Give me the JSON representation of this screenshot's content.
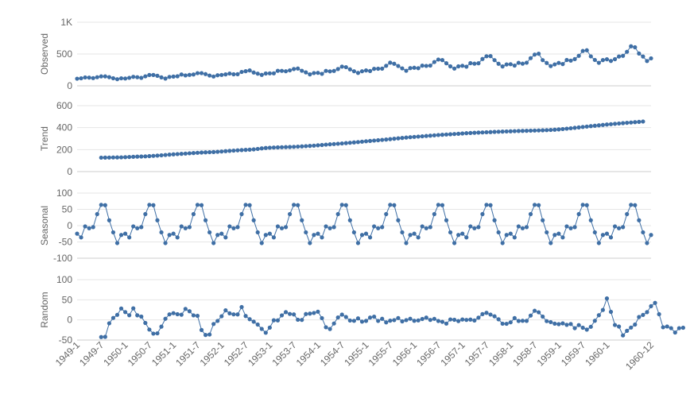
{
  "chart_data": {
    "type": "line",
    "title": "",
    "x_label": "",
    "x_ticks": [
      "1949-1",
      "1949-7",
      "1950-1",
      "1950-7",
      "1951-1",
      "1951-7",
      "1952-1",
      "1952-7",
      "1953-1",
      "1953-7",
      "1954-1",
      "1954-7",
      "1955-1",
      "1955-7",
      "1956-1",
      "1956-7",
      "1957-1",
      "1957-7",
      "1958-1",
      "1958-7",
      "1959-1",
      "1959-7",
      "1960-1",
      "1960-12"
    ],
    "x_range": [
      "1949-1",
      "1960-12"
    ],
    "color": "#3f6fa5",
    "panels": [
      {
        "name": "Observed",
        "y_ticks": [
          0,
          500,
          1000
        ],
        "y_tick_labels": [
          "0",
          "500",
          "1K"
        ],
        "ylim": [
          0,
          1000
        ],
        "values": [
          112,
          118,
          132,
          129,
          121,
          135,
          148,
          148,
          136,
          119,
          104,
          118,
          115,
          126,
          141,
          135,
          125,
          149,
          170,
          170,
          158,
          133,
          114,
          140,
          145,
          150,
          178,
          163,
          172,
          178,
          199,
          199,
          184,
          162,
          146,
          166,
          171,
          180,
          193,
          181,
          183,
          218,
          230,
          242,
          209,
          191,
          172,
          194,
          196,
          196,
          236,
          235,
          229,
          243,
          264,
          272,
          237,
          211,
          180,
          201,
          204,
          188,
          235,
          227,
          234,
          264,
          302,
          293,
          259,
          229,
          203,
          229,
          242,
          233,
          267,
          269,
          270,
          315,
          364,
          347,
          312,
          274,
          237,
          278,
          284,
          277,
          317,
          313,
          318,
          374,
          413,
          405,
          355,
          306,
          271,
          306,
          315,
          301,
          356,
          348,
          355,
          422,
          465,
          467,
          404,
          347,
          305,
          336,
          340,
          318,
          362,
          348,
          363,
          435,
          491,
          505,
          404,
          359,
          310,
          337,
          360,
          342,
          406,
          396,
          420,
          472,
          548,
          559,
          463,
          407,
          362,
          405,
          417,
          391,
          419,
          461,
          472,
          535,
          622,
          606,
          508,
          461,
          390,
          432
        ]
      },
      {
        "name": "Trend",
        "y_ticks": [
          0,
          200,
          400,
          600
        ],
        "y_tick_labels": [
          "0",
          "200",
          "400",
          "600"
        ],
        "ylim": [
          0,
          600
        ],
        "start_index": 6,
        "values": [
          126.79,
          127.25,
          127.96,
          128.58,
          129.0,
          129.75,
          131.25,
          133.08,
          134.92,
          136.42,
          137.42,
          138.75,
          140.92,
          143.17,
          145.71,
          148.42,
          151.54,
          154.71,
          157.12,
          159.54,
          161.83,
          164.12,
          166.67,
          169.08,
          171.25,
          173.58,
          175.46,
          176.83,
          178.04,
          180.17,
          183.12,
          186.21,
          189.04,
          191.29,
          193.58,
          195.83,
          198.04,
          199.75,
          202.21,
          206.42,
          211.29,
          215.21,
          217.42,
          219.04,
          220.58,
          222.0,
          222.92,
          224.0,
          225.5,
          227.42,
          229.5,
          231.62,
          233.92,
          236.38,
          239.25,
          242.25,
          245.21,
          248.21,
          250.79,
          253.38,
          256.17,
          259.25,
          262.33,
          265.5,
          268.96,
          272.62,
          276.17,
          279.38,
          282.29,
          285.38,
          288.62,
          291.88,
          295.62,
          299.29,
          302.88,
          306.42,
          309.71,
          312.92,
          315.83,
          318.62,
          321.33,
          324.12,
          327.12,
          330.04,
          332.79,
          335.29,
          337.58,
          339.79,
          342.04,
          344.42,
          347.0,
          349.42,
          351.46,
          353.21,
          354.92,
          356.54,
          358.12,
          359.75,
          361.33,
          362.83,
          364.25,
          365.58,
          366.88,
          368.17,
          369.38,
          370.5,
          371.54,
          372.5,
          373.5,
          374.58,
          375.79,
          377.21,
          379.04,
          381.38,
          384.17,
          387.29,
          390.71,
          394.38,
          398.21,
          402.12,
          406.04,
          409.92,
          413.75,
          417.5,
          421.17,
          424.79,
          428.29,
          431.67,
          434.88,
          437.96,
          440.96,
          443.92,
          446.88,
          449.83,
          452.75,
          455.67
        ]
      },
      {
        "name": "Seasonal",
        "y_ticks": [
          -100,
          -50,
          0,
          50,
          100
        ],
        "y_tick_labels": [
          "-100",
          "-50",
          "0",
          "50",
          "100"
        ],
        "ylim": [
          -100,
          100
        ],
        "pattern": [
          -24.75,
          -36.19,
          -2.24,
          -8.04,
          -4.51,
          35.4,
          63.83,
          62.82,
          16.52,
          -20.64,
          -53.59,
          -28.62
        ]
      },
      {
        "name": "Random",
        "y_ticks": [
          -50,
          0,
          50,
          100
        ],
        "y_tick_labels": [
          "-50",
          "0",
          "50",
          "100"
        ],
        "ylim": [
          -50,
          100
        ],
        "start_index": 6,
        "values": [
          -42.62,
          -42.07,
          -8.49,
          4.85,
          12.57,
          28.3,
          19.41,
          11.6,
          28.66,
          11.45,
          8.18,
          -7.6,
          -23.99,
          -34.06,
          -33.33,
          -16.71,
          2.85,
          13.79,
          16.75,
          14.15,
          12.91,
          27.35,
          21.5,
          11.27,
          10.14,
          -25.07,
          -37.37,
          -36.33,
          -10.15,
          -2.5,
          9.09,
          23.8,
          16.38,
          13.77,
          13.66,
          31.94,
          9.75,
          1.8,
          -4.37,
          -11.49,
          -22.38,
          -31.84,
          -19.14,
          -0.87,
          -1.12,
          11.32,
          19.31,
          14.8,
          13.7,
          0.4,
          -0.07,
          14.58,
          15.62,
          17.23,
          20.45,
          4.36,
          -18.29,
          -22.62,
          -8.94,
          6.12,
          13.16,
          7.18,
          -1.55,
          -2.3,
          3.77,
          -4.29,
          -2.41,
          5.82,
          8.0,
          -2.5,
          2.75,
          -6.04,
          -1.84,
          -0.52,
          4.68,
          -3.66,
          -0.56,
          2.86,
          -2.17,
          -1.28,
          2.28,
          5.71,
          -0.04,
          2.68,
          -2.62,
          -4.79,
          -9.19,
          1.15,
          0.36,
          -2.83,
          1.05,
          -0.01,
          0.84,
          -1.4,
          5.62,
          14.34,
          17.61,
          13.26,
          8.91,
          1.54,
          -9.46,
          -9.64,
          -6.01,
          4.55,
          -2.63,
          -2.2,
          -2.4,
          10.77,
          22.71,
          18.99,
          8.27,
          -3.01,
          -5.46,
          -9.36,
          -10.54,
          -8.57,
          -12.32,
          -10.18,
          -20.57,
          -12.85,
          -19.41,
          -24.08,
          -17.08,
          -2.2,
          11.63,
          24.72,
          53.35,
          20.02,
          -12.6,
          -16.48,
          -38.56,
          -27.12,
          -19.04,
          -11.51,
          7.27,
          12.36,
          19.36,
          34.11,
          42.27,
          14.15,
          -18.3,
          -16.28,
          -20.55,
          -31.41,
          -20.51,
          -19.46
        ]
      }
    ]
  }
}
